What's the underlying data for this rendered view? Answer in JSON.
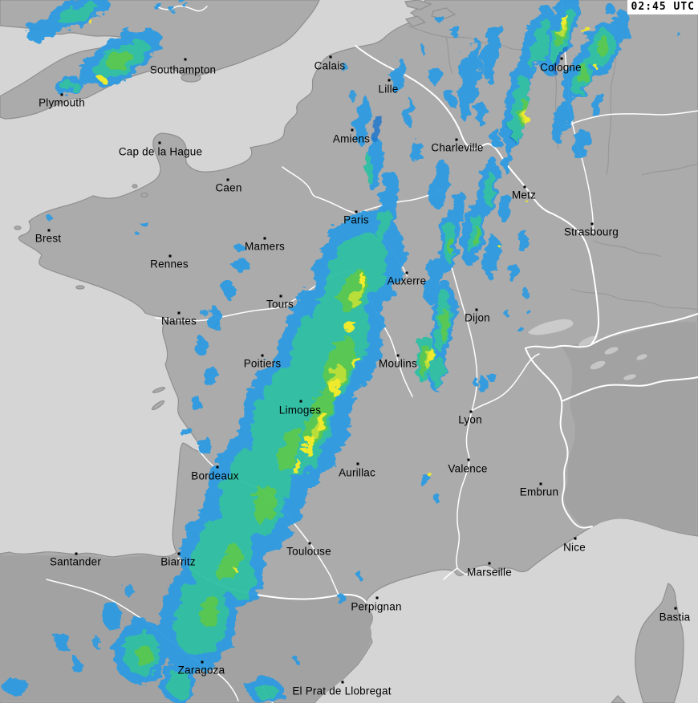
{
  "header": {
    "timestamp": "02:45 UTC"
  },
  "map": {
    "description": "precipitation radar composite over France and neighbouring countries",
    "colors": {
      "sea": "#d5d5d5",
      "land": "#ababab",
      "land_south": "#a3a3a3",
      "out_of_range_land": "#a2a2a2",
      "coastline": "#8f8f8f",
      "country_border": "#ffffff",
      "region_border": "#989898",
      "river": "#ffffff",
      "lake": "#cbcbcb",
      "city_label": "#000000",
      "timestamp_bg": "#ffffff",
      "timestamp_text": "#000000"
    },
    "radar_palette": [
      {
        "intensity": "light",
        "color": "#2d9be0"
      },
      {
        "intensity": "light-moderate",
        "color": "#1a74cf"
      },
      {
        "intensity": "moderate",
        "color": "#2fc0a4"
      },
      {
        "intensity": "heavy",
        "color": "#54c84f"
      },
      {
        "intensity": "very-heavy",
        "color": "#b8e036"
      },
      {
        "intensity": "intense",
        "color": "#f2ee26"
      }
    ]
  },
  "cities": [
    {
      "name": "Southampton",
      "dot": [
        231,
        74
      ],
      "label": [
        228,
        87
      ]
    },
    {
      "name": "Plymouth",
      "dot": [
        77,
        118
      ],
      "label": [
        77,
        128
      ]
    },
    {
      "name": "Cap de la Hague",
      "dot": [
        199,
        178
      ],
      "label": [
        200,
        189
      ]
    },
    {
      "name": "Calais",
      "dot": [
        412,
        71
      ],
      "label": [
        411,
        82
      ]
    },
    {
      "name": "Lille",
      "dot": [
        485,
        100
      ],
      "label": [
        484,
        111
      ]
    },
    {
      "name": "Amiens",
      "dot": [
        439,
        162
      ],
      "label": [
        438,
        173
      ]
    },
    {
      "name": "Charleville",
      "dot": [
        569,
        174
      ],
      "label": [
        570,
        184
      ]
    },
    {
      "name": "Cologne",
      "dot": [
        700,
        73
      ],
      "label": [
        699,
        84
      ]
    },
    {
      "name": "Metz",
      "dot": [
        654,
        233
      ],
      "label": [
        653,
        243
      ]
    },
    {
      "name": "Strasbourg",
      "dot": [
        738,
        279
      ],
      "label": [
        737,
        289
      ]
    },
    {
      "name": "Caen",
      "dot": [
        284,
        224
      ],
      "label": [
        285,
        234
      ]
    },
    {
      "name": "Brest",
      "dot": [
        61,
        287
      ],
      "label": [
        60,
        297
      ]
    },
    {
      "name": "Paris",
      "dot": [
        444,
        264
      ],
      "label": [
        444,
        274
      ]
    },
    {
      "name": "Mamers",
      "dot": [
        330,
        297
      ],
      "label": [
        330,
        307
      ]
    },
    {
      "name": "Rennes",
      "dot": [
        212,
        319
      ],
      "label": [
        211,
        329
      ]
    },
    {
      "name": "Auxerre",
      "dot": [
        507,
        340
      ],
      "label": [
        507,
        350
      ]
    },
    {
      "name": "Tours",
      "dot": [
        350,
        369
      ],
      "label": [
        349,
        379
      ]
    },
    {
      "name": "Dijon",
      "dot": [
        594,
        386
      ],
      "label": [
        595,
        396
      ]
    },
    {
      "name": "Nantes",
      "dot": [
        223,
        390
      ],
      "label": [
        223,
        400
      ]
    },
    {
      "name": "Poitiers",
      "dot": [
        327,
        443
      ],
      "label": [
        327,
        453
      ]
    },
    {
      "name": "Moulins",
      "dot": [
        496,
        443
      ],
      "label": [
        496,
        453
      ]
    },
    {
      "name": "Limoges",
      "dot": [
        375,
        500
      ],
      "label": [
        374,
        511
      ]
    },
    {
      "name": "Lyon",
      "dot": [
        587,
        513
      ],
      "label": [
        586,
        523
      ]
    },
    {
      "name": "Valence",
      "dot": [
        584,
        573
      ],
      "label": [
        583,
        584
      ]
    },
    {
      "name": "Aurillac",
      "dot": [
        446,
        578
      ],
      "label": [
        445,
        589
      ]
    },
    {
      "name": "Bordeaux",
      "dot": [
        271,
        582
      ],
      "label": [
        268,
        593
      ]
    },
    {
      "name": "Embrun",
      "dot": [
        674,
        603
      ],
      "label": [
        672,
        613
      ]
    },
    {
      "name": "Toulouse",
      "dot": [
        386,
        677
      ],
      "label": [
        385,
        687
      ]
    },
    {
      "name": "Nice",
      "dot": [
        717,
        671
      ],
      "label": [
        716,
        682
      ]
    },
    {
      "name": "Santander",
      "dot": [
        95,
        690
      ],
      "label": [
        94,
        700
      ]
    },
    {
      "name": "Biarritz",
      "dot": [
        223,
        690
      ],
      "label": [
        222,
        700
      ]
    },
    {
      "name": "Marseille",
      "dot": [
        610,
        702
      ],
      "label": [
        610,
        713
      ]
    },
    {
      "name": "Perpignan",
      "dot": [
        470,
        745
      ],
      "label": [
        469,
        756
      ]
    },
    {
      "name": "Zaragoza",
      "dot": [
        252,
        825
      ],
      "label": [
        251,
        835
      ]
    },
    {
      "name": "Bastia",
      "dot": [
        842,
        758
      ],
      "label": [
        841,
        769
      ]
    },
    {
      "name": "El Prat de Llobregat",
      "dot": [
        427,
        850
      ],
      "label": [
        426,
        861
      ]
    }
  ]
}
